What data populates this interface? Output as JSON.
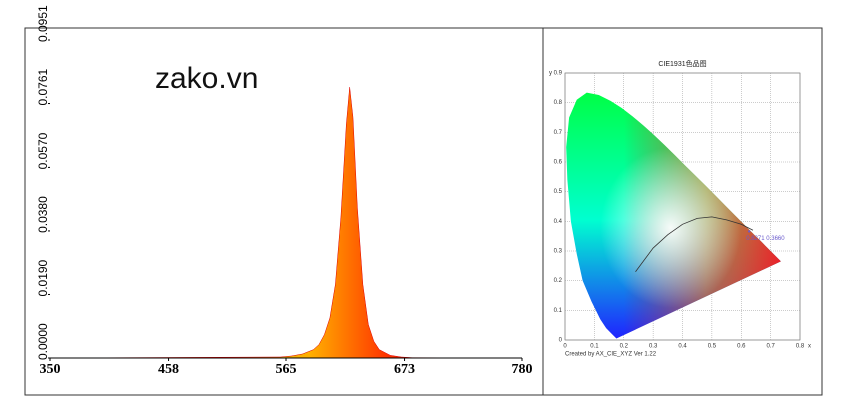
{
  "chart_data": [
    {
      "type": "area",
      "annotation": "zako.vn",
      "series": [
        {
          "color": "#e00000",
          "x": [
            350,
            560,
            570,
            580,
            590,
            595,
            600,
            605,
            610,
            615,
            620,
            623,
            626,
            630,
            635,
            640,
            645,
            650,
            660,
            670,
            680,
            780
          ],
          "values": [
            0,
            0.0003,
            0.0006,
            0.0012,
            0.0025,
            0.004,
            0.007,
            0.012,
            0.022,
            0.042,
            0.07,
            0.081,
            0.072,
            0.045,
            0.022,
            0.01,
            0.005,
            0.0025,
            0.0008,
            0.0003,
            0.0001,
            0
          ]
        }
      ],
      "xlim": [
        350,
        780
      ],
      "xticks": [
        350,
        458,
        565,
        673,
        780
      ],
      "ylim": [
        0,
        0.0951
      ],
      "yticks": [
        {
          "value": 0,
          "label": "0.0000"
        },
        {
          "value": 0.019,
          "label": "0.0190"
        },
        {
          "value": 0.038,
          "label": "0.0380"
        },
        {
          "value": 0.057,
          "label": "0.0570"
        },
        {
          "value": 0.0761,
          "label": "0.0761"
        },
        {
          "value": 0.0951,
          "label": "0.0951"
        }
      ]
    },
    {
      "type": "scatter",
      "title": "CIE1931色品图",
      "x_label": "x",
      "y_label": "y",
      "caption": "Created by AX_CIE_XYZ Ver 1.22",
      "points": [
        {
          "x": 0.6271,
          "y": 0.366,
          "label": "0.6271 0.3660",
          "color": "#6a5acd"
        }
      ],
      "xlim": [
        0,
        0.8
      ],
      "xticks": [
        0,
        0.1,
        0.2,
        0.3,
        0.4,
        0.5,
        0.6,
        0.7,
        0.8
      ],
      "ylim": [
        0,
        0.9
      ],
      "yticks": [
        0,
        0.1,
        0.2,
        0.3,
        0.4,
        0.5,
        0.6,
        0.7,
        0.8,
        0.9
      ],
      "grid": true
    }
  ]
}
